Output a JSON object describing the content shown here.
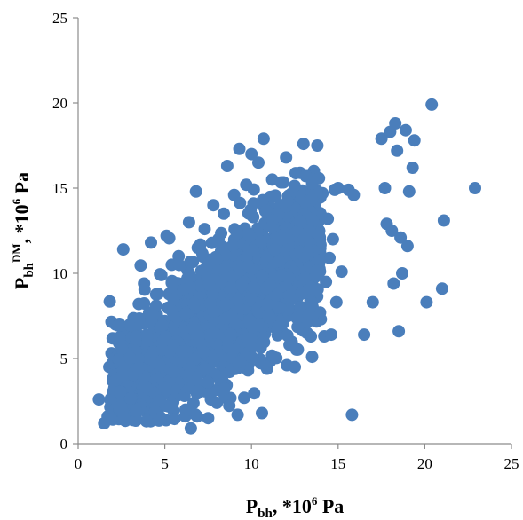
{
  "chart_data": {
    "type": "scatter",
    "xlabel": {
      "base": "P",
      "sub": "bh",
      "rest": ", *10",
      "sup": "6",
      "unit": " Pa"
    },
    "ylabel": {
      "base": "P",
      "sub": "bh",
      "sup1": "DM",
      "rest": ", *10",
      "sup2": "6",
      "unit": " Pa"
    },
    "xlim": [
      0,
      25
    ],
    "ylim": [
      0,
      25
    ],
    "xticks": [
      0,
      5,
      10,
      15,
      20,
      25
    ],
    "yticks": [
      0,
      5,
      10,
      15,
      20,
      25
    ],
    "grid": false,
    "legend": "none",
    "marker_color": "#4a7ebb",
    "series": [
      {
        "points": [
          [
            1.2,
            2.6
          ],
          [
            1.5,
            1.2
          ],
          [
            1.7,
            1.6
          ],
          [
            1.8,
            4.5
          ],
          [
            2.0,
            3.8
          ],
          [
            2.1,
            1.5
          ],
          [
            2.2,
            2.3
          ],
          [
            2.5,
            3.3
          ],
          [
            2.6,
            11.4
          ],
          [
            2.7,
            6.5
          ],
          [
            2.9,
            4.1
          ],
          [
            3.0,
            7.0
          ],
          [
            3.2,
            3.0
          ],
          [
            3.4,
            2.0
          ],
          [
            3.5,
            8.2
          ],
          [
            3.6,
            5.5
          ],
          [
            3.8,
            9.4
          ],
          [
            3.9,
            4.6
          ],
          [
            4.0,
            6.2
          ],
          [
            4.1,
            3.7
          ],
          [
            4.2,
            11.8
          ],
          [
            4.3,
            7.4
          ],
          [
            4.4,
            5.0
          ],
          [
            4.5,
            2.7
          ],
          [
            4.6,
            8.8
          ],
          [
            4.7,
            6.0
          ],
          [
            4.8,
            9.9
          ],
          [
            4.9,
            4.2
          ],
          [
            5.0,
            7.2
          ],
          [
            5.1,
            12.2
          ],
          [
            5.2,
            2.2
          ],
          [
            5.3,
            6.6
          ],
          [
            5.4,
            10.5
          ],
          [
            5.5,
            8.0
          ],
          [
            5.6,
            3.5
          ],
          [
            5.7,
            5.8
          ],
          [
            5.8,
            11.0
          ],
          [
            5.9,
            9.1
          ],
          [
            6.0,
            4.9
          ],
          [
            6.1,
            7.7
          ],
          [
            6.2,
            2.0
          ],
          [
            6.3,
            10.2
          ],
          [
            6.4,
            13.0
          ],
          [
            6.5,
            0.9
          ],
          [
            6.6,
            6.4
          ],
          [
            6.7,
            8.5
          ],
          [
            6.8,
            14.8
          ],
          [
            6.9,
            11.5
          ],
          [
            7.0,
            5.3
          ],
          [
            7.1,
            9.6
          ],
          [
            7.2,
            3.1
          ],
          [
            7.3,
            12.6
          ],
          [
            7.4,
            7.9
          ],
          [
            7.5,
            1.5
          ],
          [
            7.6,
            10.8
          ],
          [
            7.7,
            6.1
          ],
          [
            7.8,
            14.0
          ],
          [
            7.9,
            8.9
          ],
          [
            8.0,
            2.4
          ],
          [
            8.1,
            12.0
          ],
          [
            8.2,
            4.7
          ],
          [
            8.3,
            9.3
          ],
          [
            8.4,
            13.5
          ],
          [
            8.5,
            7.0
          ],
          [
            8.6,
            16.3
          ],
          [
            8.7,
            11.2
          ],
          [
            8.8,
            5.6
          ],
          [
            8.9,
            10.0
          ],
          [
            9.0,
            14.6
          ],
          [
            9.1,
            8.1
          ],
          [
            9.2,
            1.7
          ],
          [
            9.3,
            17.3
          ],
          [
            9.4,
            12.4
          ],
          [
            9.5,
            6.8
          ],
          [
            9.6,
            10.6
          ],
          [
            9.7,
            15.2
          ],
          [
            9.8,
            4.3
          ],
          [
            9.9,
            9.0
          ],
          [
            10.0,
            17.0
          ],
          [
            10.1,
            13.3
          ],
          [
            10.2,
            6.0
          ],
          [
            10.3,
            11.7
          ],
          [
            10.4,
            16.5
          ],
          [
            10.5,
            8.4
          ],
          [
            10.6,
            14.1
          ],
          [
            10.7,
            17.9
          ],
          [
            10.8,
            10.3
          ],
          [
            10.9,
            4.4
          ],
          [
            11.0,
            12.9
          ],
          [
            11.2,
            15.5
          ],
          [
            11.4,
            9.2
          ],
          [
            11.6,
            13.8
          ],
          [
            11.8,
            7.2
          ],
          [
            12.0,
            16.8
          ],
          [
            12.1,
            11.1
          ],
          [
            12.2,
            5.8
          ],
          [
            12.4,
            14.4
          ],
          [
            12.5,
            4.5
          ],
          [
            12.6,
            10.4
          ],
          [
            12.8,
            15.9
          ],
          [
            12.9,
            8.0
          ],
          [
            13.0,
            17.6
          ],
          [
            13.1,
            12.3
          ],
          [
            13.2,
            6.5
          ],
          [
            13.4,
            13.6
          ],
          [
            13.5,
            5.1
          ],
          [
            13.6,
            16.0
          ],
          [
            13.7,
            9.8
          ],
          [
            13.8,
            17.5
          ],
          [
            13.9,
            11.4
          ],
          [
            14.0,
            7.3
          ],
          [
            14.1,
            14.7
          ],
          [
            14.2,
            6.3
          ],
          [
            14.3,
            9.5
          ],
          [
            14.4,
            13.2
          ],
          [
            14.5,
            10.9
          ],
          [
            14.6,
            6.4
          ],
          [
            14.7,
            12.0
          ],
          [
            14.8,
            14.9
          ],
          [
            14.9,
            8.3
          ],
          [
            15.0,
            15.0
          ],
          [
            15.2,
            10.1
          ],
          [
            15.6,
            14.9
          ],
          [
            15.8,
            1.7
          ],
          [
            15.9,
            14.6
          ],
          [
            16.5,
            6.4
          ],
          [
            17.0,
            8.3
          ],
          [
            17.5,
            17.9
          ],
          [
            17.7,
            15.0
          ],
          [
            17.8,
            12.9
          ],
          [
            18.0,
            18.3
          ],
          [
            18.1,
            12.5
          ],
          [
            18.2,
            9.4
          ],
          [
            18.3,
            18.8
          ],
          [
            18.4,
            17.2
          ],
          [
            18.5,
            6.6
          ],
          [
            18.6,
            12.1
          ],
          [
            18.7,
            10.0
          ],
          [
            18.9,
            18.4
          ],
          [
            19.0,
            11.6
          ],
          [
            19.1,
            14.8
          ],
          [
            19.3,
            16.2
          ],
          [
            19.4,
            17.8
          ],
          [
            20.1,
            8.3
          ],
          [
            20.4,
            19.9
          ],
          [
            21.0,
            9.1
          ],
          [
            21.1,
            13.1
          ],
          [
            22.9,
            15.0
          ]
        ]
      }
    ]
  }
}
